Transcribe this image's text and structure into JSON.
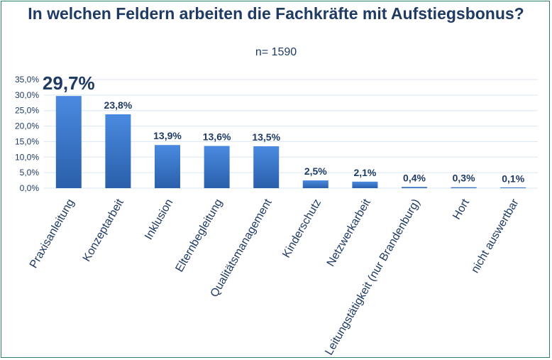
{
  "chart_data": {
    "type": "bar",
    "title": "In welchen Feldern arbeiten die Fachkräfte mit Aufstiegsbonus?",
    "subtitle": "n= 1590",
    "xlabel": "",
    "ylabel": "",
    "categories": [
      "Praxisanleitung",
      "Konzeptarbeit",
      "Inklusion",
      "Elternbegleitung",
      "Qualitätsmanagement",
      "Kinderschutz",
      "Netzwerkarbeit",
      "Leitungstätigkeit (nur Brandenburg)",
      "Hort",
      "nicht auswertbar"
    ],
    "values": [
      29.7,
      23.8,
      13.9,
      13.6,
      13.5,
      2.5,
      2.1,
      0.4,
      0.3,
      0.1
    ],
    "data_labels": [
      "29,7%",
      "23,8%",
      "13,9%",
      "13,6%",
      "13,5%",
      "2,5%",
      "2,1%",
      "0,4%",
      "0,3%",
      "0,1%"
    ],
    "yticks": [
      "0,0%",
      "5,0%",
      "10,0%",
      "15,0%",
      "20,0%",
      "25,0%",
      "30,0%",
      "35,0%"
    ],
    "ylim": [
      0,
      35
    ],
    "grid": true,
    "legend": "none",
    "colors": {
      "bar": "#2e6cc4",
      "bar_light": "#4a8ae0",
      "text": "#1f3a63",
      "grid": "#d9e6f2"
    }
  }
}
